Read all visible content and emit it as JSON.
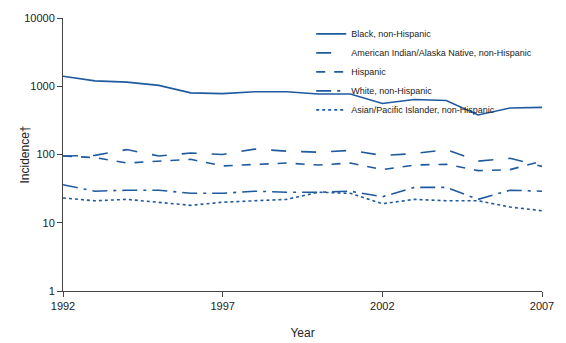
{
  "chart_data": {
    "type": "line",
    "x_label": "Year",
    "y_label": "Incidence†",
    "x": [
      1992,
      1993,
      1994,
      1995,
      1996,
      1997,
      1998,
      1999,
      2000,
      2001,
      2002,
      2003,
      2004,
      2005,
      2006,
      2007
    ],
    "xlim": [
      1992,
      2007
    ],
    "xticks": [
      1992,
      1997,
      2002,
      2007
    ],
    "ylim": [
      1,
      10000
    ],
    "yticks": [
      1,
      10,
      100,
      1000,
      10000
    ],
    "log": "y",
    "grid": false,
    "legend": "upper right",
    "color": "#1f5a9e",
    "series": [
      {
        "name": "Black, non-Hispanic",
        "line_style": "solid",
        "values": [
          1400,
          1200,
          1150,
          1030,
          800,
          780,
          830,
          830,
          770,
          770,
          560,
          640,
          620,
          380,
          480,
          490
        ]
      },
      {
        "name": "American Indian/Alaska Native, non-Hispanic",
        "line_style": "longdash",
        "values": [
          95,
          97,
          118,
          95,
          105,
          100,
          120,
          112,
          108,
          115,
          97,
          103,
          118,
          80,
          88,
          67
        ]
      },
      {
        "name": "Hispanic",
        "line_style": "dash",
        "values": [
          95,
          90,
          75,
          80,
          85,
          68,
          72,
          75,
          70,
          75,
          60,
          70,
          72,
          58,
          60,
          80
        ]
      },
      {
        "name": "White, non-Hispanic",
        "line_style": "longdashdot",
        "values": [
          36,
          29,
          30,
          30,
          27,
          27,
          29,
          28,
          28,
          29,
          24,
          33,
          33,
          22,
          30,
          29
        ]
      },
      {
        "name": "Asian/Pacific Islander, non-Hispanic",
        "line_style": "dot",
        "values": [
          23,
          21,
          22,
          20,
          18,
          20,
          21,
          22,
          28,
          27,
          19,
          22,
          21,
          21,
          17,
          15
        ]
      }
    ]
  }
}
